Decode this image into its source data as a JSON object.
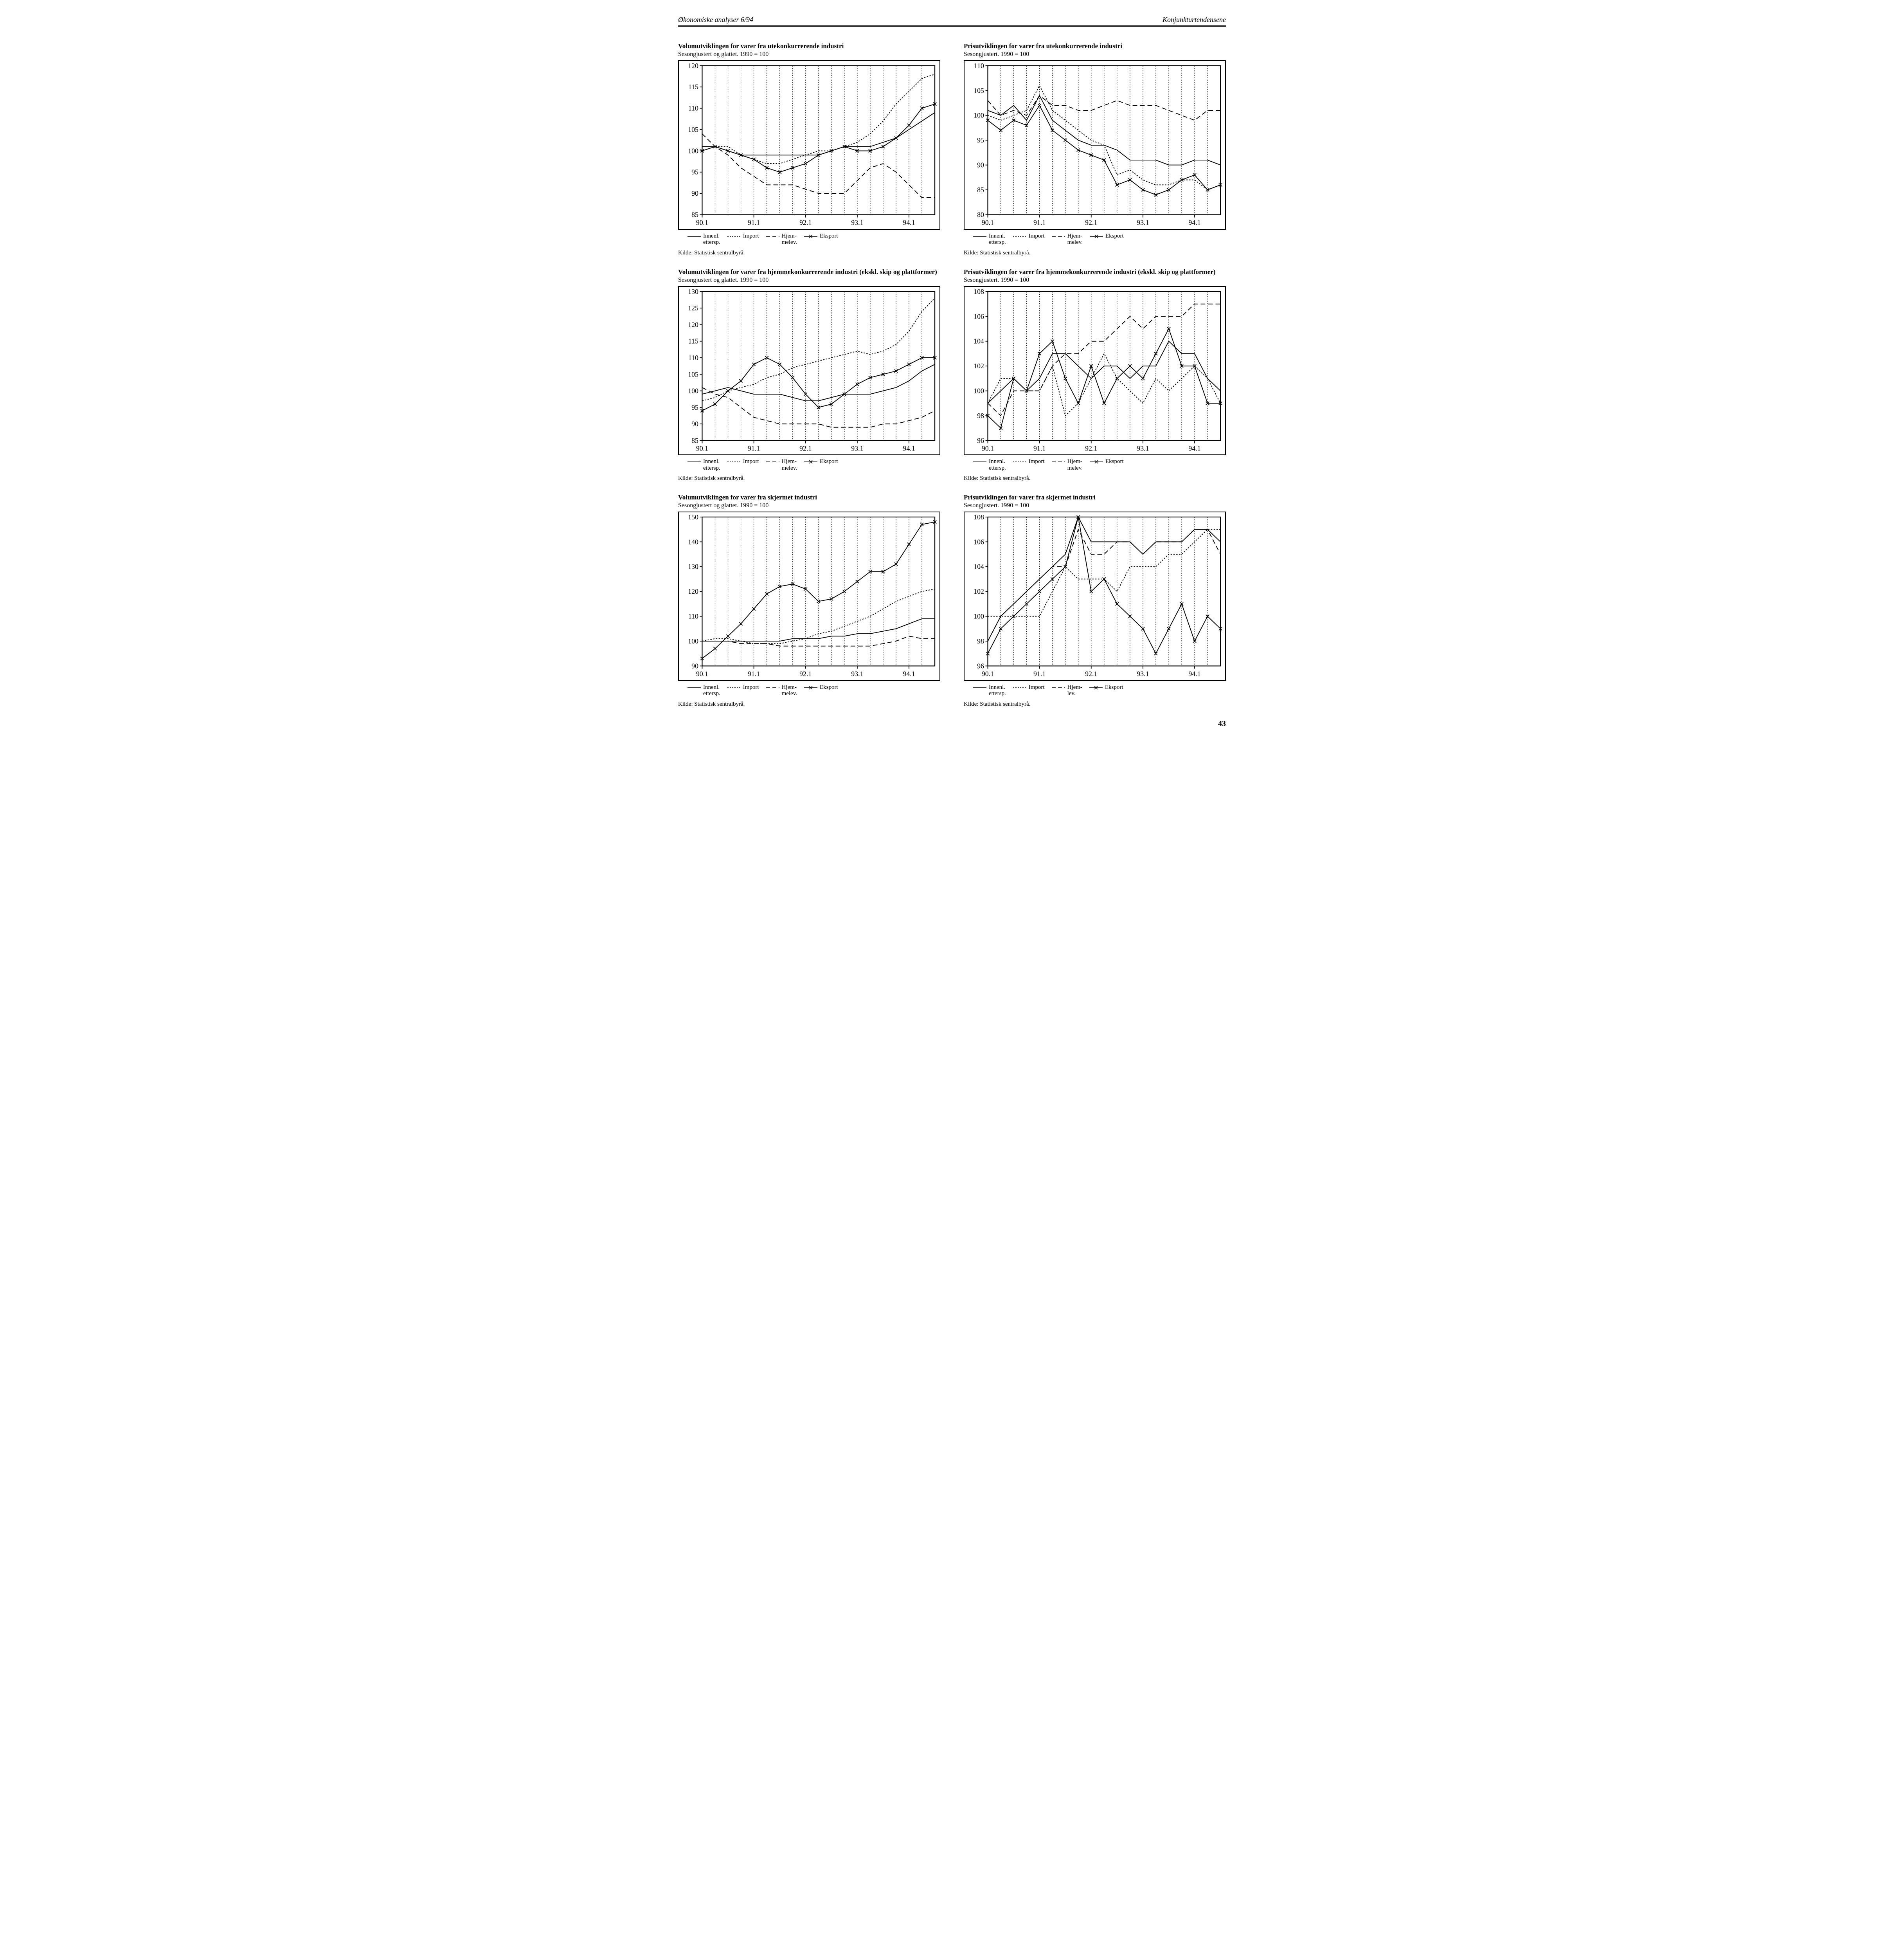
{
  "header": {
    "left": "Økonomiske analyser 6/94",
    "right": "Konjunkturtendensene"
  },
  "page_number": "43",
  "axis": {
    "xticks": [
      "90.1",
      "91.1",
      "92.1",
      "93.1",
      "94.1"
    ],
    "qpts": [
      0,
      1,
      2,
      3,
      4,
      5,
      6,
      7,
      8,
      9,
      10,
      11,
      12,
      13,
      14,
      15,
      16,
      17,
      18
    ]
  },
  "legend": {
    "s1": {
      "label": "Innenl.",
      "sub": "ettersp."
    },
    "s2": {
      "label": "Import",
      "sub": ""
    },
    "s3": {
      "label": "Hjem-",
      "sub": "melev."
    },
    "s3b": {
      "label": "Hjem-",
      "sub": "lev."
    },
    "s4": {
      "label": "Eksport",
      "sub": ""
    }
  },
  "source": "Kilde: Statistisk sentralbyrå.",
  "style": {
    "stroke": "#000000",
    "bg": "#ffffff",
    "grid_stroke": "#000000",
    "line_width": 1.6,
    "dash_short": "3,3",
    "dash_long": "10,6",
    "marker_size": 7
  },
  "charts": [
    {
      "id": "c1",
      "title": "Volumutviklingen for varer fra utekonkurrerende industri",
      "subtitle": "Sesongjustert og glattet.  1990 = 100",
      "ylim": [
        85,
        120
      ],
      "ystep": 5,
      "series": {
        "innenl": [
          101,
          101,
          100,
          99,
          99,
          99,
          99,
          99,
          99,
          99,
          100,
          101,
          101,
          101,
          102,
          103,
          105,
          107,
          109
        ],
        "import": [
          100,
          101,
          101,
          99,
          98,
          97,
          97,
          98,
          99,
          100,
          100,
          101,
          102,
          104,
          107,
          111,
          114,
          117,
          118
        ],
        "hjem": [
          104,
          101,
          99,
          96,
          94,
          92,
          92,
          92,
          91,
          90,
          90,
          90,
          93,
          96,
          97,
          95,
          92,
          89,
          89
        ],
        "eksport": [
          100,
          101,
          100,
          99,
          98,
          96,
          95,
          96,
          97,
          99,
          100,
          101,
          100,
          100,
          101,
          103,
          106,
          110,
          111
        ]
      }
    },
    {
      "id": "c2",
      "title": "Prisutviklingen for varer fra utekonkurrerende industri",
      "subtitle": "Sesongjustert.  1990 = 100",
      "ylim": [
        80,
        110
      ],
      "ystep": 5,
      "series": {
        "innenl": [
          101,
          100,
          102,
          99,
          104,
          99,
          97,
          95,
          94,
          94,
          93,
          91,
          91,
          91,
          90,
          90,
          91,
          91,
          90
        ],
        "import": [
          100,
          99,
          100,
          101,
          106,
          101,
          99,
          97,
          95,
          94,
          88,
          89,
          87,
          86,
          86,
          87,
          87,
          85,
          86
        ],
        "hjem": [
          103,
          100,
          101,
          100,
          104,
          102,
          102,
          101,
          101,
          102,
          103,
          102,
          102,
          102,
          101,
          100,
          99,
          101,
          101
        ],
        "eksport": [
          99,
          97,
          99,
          98,
          102,
          97,
          95,
          93,
          92,
          91,
          86,
          87,
          85,
          84,
          85,
          87,
          88,
          85,
          86
        ]
      }
    },
    {
      "id": "c3",
      "title": "Volumutviklingen for varer fra hjemmekonkurrerende industri (ekskl. skip og plattformer)",
      "subtitle": "Sesongjustert og glattet.  1990 = 100",
      "ylim": [
        85,
        130
      ],
      "ystep": 5,
      "series": {
        "innenl": [
          99,
          100,
          101,
          100,
          99,
          99,
          99,
          98,
          97,
          97,
          98,
          99,
          99,
          99,
          100,
          101,
          103,
          106,
          108
        ],
        "import": [
          97,
          98,
          100,
          101,
          102,
          104,
          105,
          107,
          108,
          109,
          110,
          111,
          112,
          111,
          112,
          114,
          118,
          124,
          128
        ],
        "hjem": [
          101,
          99,
          98,
          95,
          92,
          91,
          90,
          90,
          90,
          90,
          89,
          89,
          89,
          89,
          90,
          90,
          91,
          92,
          94
        ],
        "eksport": [
          94,
          96,
          100,
          103,
          108,
          110,
          108,
          104,
          99,
          95,
          96,
          99,
          102,
          104,
          105,
          106,
          108,
          110,
          110
        ]
      }
    },
    {
      "id": "c4",
      "title": "Prisutviklingen for varer fra hjemmekonkurrerende industri (ekskl. skip og plattformer)",
      "subtitle": "Sesongjustert.  1990 = 100",
      "ylim": [
        96,
        108
      ],
      "ystep": 2,
      "series": {
        "innenl": [
          99,
          100,
          101,
          100,
          101,
          103,
          103,
          102,
          101,
          102,
          102,
          101,
          102,
          102,
          104,
          103,
          103,
          101,
          100
        ],
        "import": [
          99,
          101,
          101,
          100,
          100,
          102,
          98,
          99,
          101,
          103,
          101,
          100,
          99,
          101,
          100,
          101,
          102,
          101,
          99
        ],
        "hjem": [
          99,
          98,
          100,
          100,
          100,
          102,
          103,
          103,
          104,
          104,
          105,
          106,
          105,
          106,
          106,
          106,
          107,
          107,
          107
        ],
        "eksport": [
          98,
          97,
          101,
          100,
          103,
          104,
          101,
          99,
          102,
          99,
          101,
          102,
          101,
          103,
          105,
          102,
          102,
          99,
          99
        ]
      }
    },
    {
      "id": "c5",
      "title": "Volumutviklingen for varer fra skjermet industri",
      "subtitle": "Sesongjustert og glattet.  1990 = 100",
      "ylim": [
        90,
        150
      ],
      "ystep": 10,
      "series": {
        "innenl": [
          100,
          100,
          100,
          100,
          100,
          100,
          100,
          101,
          101,
          101,
          102,
          102,
          103,
          103,
          104,
          105,
          107,
          109,
          109
        ],
        "import": [
          100,
          101,
          101,
          100,
          99,
          99,
          99,
          100,
          101,
          103,
          104,
          106,
          108,
          110,
          113,
          116,
          118,
          120,
          121
        ],
        "hjem": [
          100,
          100,
          100,
          99,
          99,
          99,
          98,
          98,
          98,
          98,
          98,
          98,
          98,
          98,
          99,
          100,
          102,
          101,
          101
        ],
        "eksport": [
          93,
          97,
          102,
          107,
          113,
          119,
          122,
          123,
          121,
          116,
          117,
          120,
          124,
          128,
          128,
          131,
          139,
          147,
          148
        ]
      }
    },
    {
      "id": "c6",
      "title": "Prisutviklingen for varer fra skjermet industri",
      "subtitle": "Sesongjustert.  1990 = 100",
      "ylim": [
        96,
        108
      ],
      "ystep": 2,
      "series": {
        "innenl": [
          98,
          100,
          101,
          102,
          103,
          104,
          105,
          108,
          106,
          106,
          106,
          106,
          105,
          106,
          106,
          106,
          107,
          107,
          106
        ],
        "import": [
          100,
          100,
          100,
          100,
          100,
          102,
          104,
          103,
          103,
          103,
          102,
          104,
          104,
          104,
          105,
          105,
          106,
          107,
          107
        ],
        "hjem": [
          98,
          100,
          101,
          102,
          103,
          104,
          104,
          107,
          105,
          105,
          106,
          106,
          105,
          106,
          106,
          106,
          107,
          107,
          105
        ],
        "eksport": [
          97,
          99,
          100,
          101,
          102,
          103,
          104,
          108,
          102,
          103,
          101,
          100,
          99,
          97,
          99,
          101,
          98,
          100,
          99
        ]
      }
    }
  ]
}
